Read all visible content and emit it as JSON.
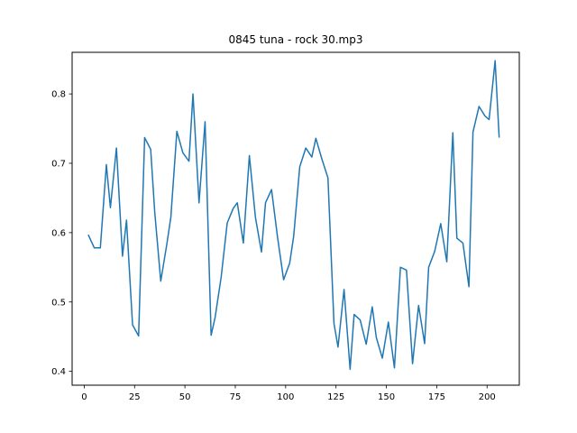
{
  "chart_data": {
    "type": "line",
    "title": "0845 tuna - rock 30.mp3",
    "xlabel": "",
    "ylabel": "",
    "xlim": [
      -6,
      216
    ],
    "ylim": [
      0.38,
      0.86
    ],
    "xticks": [
      0,
      25,
      50,
      75,
      100,
      125,
      150,
      175,
      200
    ],
    "yticks": [
      0.4,
      0.5,
      0.6,
      0.7,
      0.8
    ],
    "ytick_labels": [
      "0.4",
      "0.5",
      "0.6",
      "0.7",
      "0.8"
    ],
    "grid": false,
    "line_color": "#1f77b4",
    "series": [
      {
        "x": [
          2,
          5,
          8,
          11,
          13,
          16,
          19,
          21,
          24,
          27,
          30,
          33,
          35,
          38,
          41,
          43,
          46,
          49,
          52,
          54,
          57,
          60,
          63,
          65,
          68,
          71,
          74,
          76,
          79,
          82,
          85,
          88,
          90,
          93,
          96,
          99,
          102,
          104,
          107,
          110,
          113,
          115,
          118,
          121,
          124,
          126,
          129,
          132,
          134,
          137,
          140,
          143,
          145,
          148,
          151,
          154,
          157,
          160,
          163,
          166,
          169,
          171,
          174,
          177,
          180,
          183,
          185,
          188,
          191,
          193,
          196,
          199,
          201,
          204,
          206
        ],
        "y": [
          0.597,
          0.578,
          0.578,
          0.698,
          0.636,
          0.722,
          0.566,
          0.618,
          0.467,
          0.451,
          0.737,
          0.72,
          0.63,
          0.53,
          0.583,
          0.622,
          0.746,
          0.715,
          0.703,
          0.8,
          0.643,
          0.76,
          0.452,
          0.478,
          0.536,
          0.614,
          0.635,
          0.643,
          0.585,
          0.711,
          0.622,
          0.572,
          0.643,
          0.662,
          0.593,
          0.532,
          0.556,
          0.595,
          0.695,
          0.722,
          0.709,
          0.736,
          0.706,
          0.679,
          0.469,
          0.435,
          0.518,
          0.403,
          0.482,
          0.474,
          0.439,
          0.493,
          0.449,
          0.419,
          0.471,
          0.405,
          0.55,
          0.546,
          0.411,
          0.495,
          0.44,
          0.55,
          0.573,
          0.613,
          0.558,
          0.744,
          0.592,
          0.585,
          0.522,
          0.745,
          0.782,
          0.768,
          0.763,
          0.848,
          0.737
        ]
      }
    ]
  }
}
